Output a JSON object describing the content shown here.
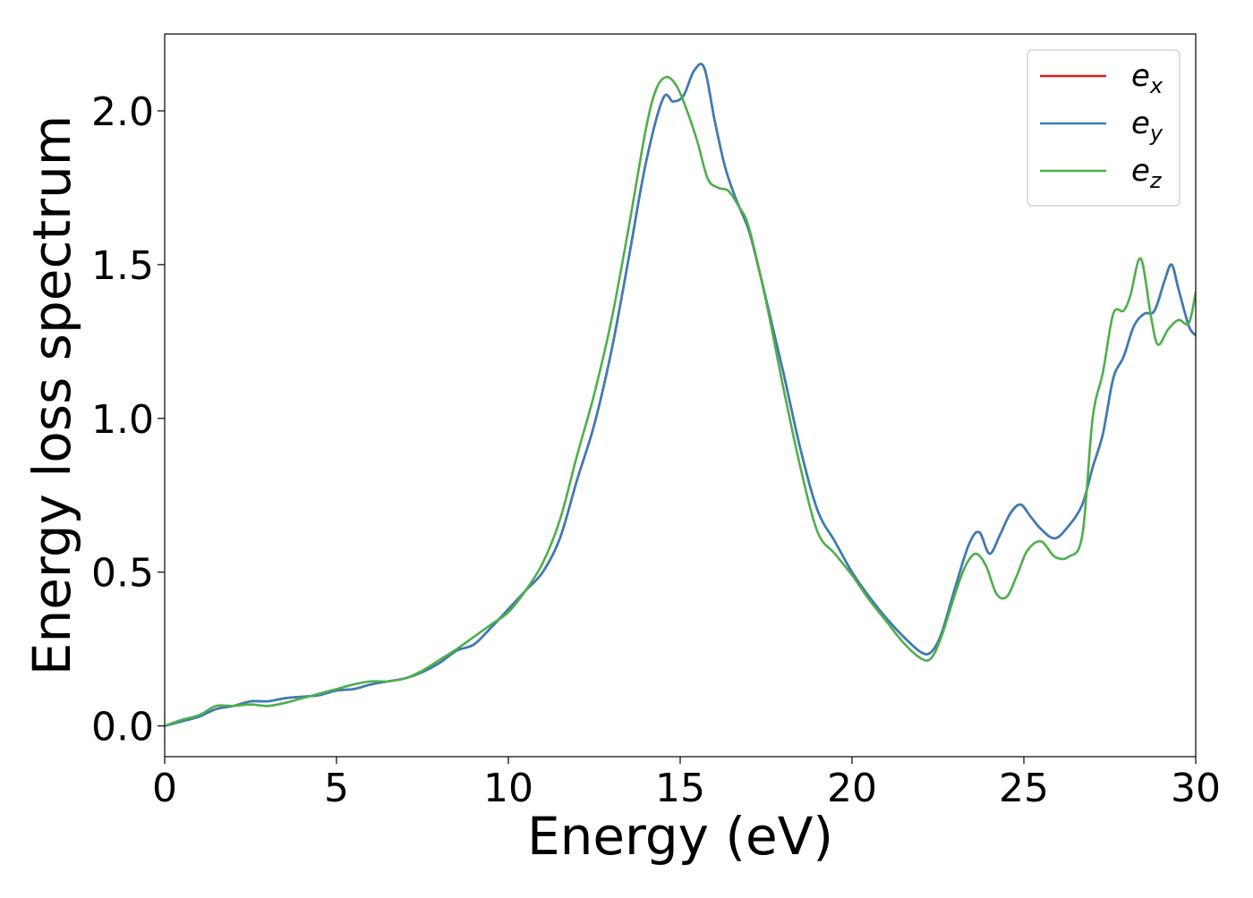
{
  "chart_data": {
    "type": "line",
    "title": "",
    "xlabel": "Energy (eV)",
    "ylabel": "Energy loss spectrum",
    "xlim": [
      0,
      30
    ],
    "ylim": [
      -0.1,
      2.25
    ],
    "xticks": [
      0,
      5,
      10,
      15,
      20,
      25,
      30
    ],
    "xtick_labels": [
      "0",
      "5",
      "10",
      "15",
      "20",
      "25",
      "30"
    ],
    "yticks": [
      0.0,
      0.5,
      1.0,
      1.5,
      2.0
    ],
    "ytick_labels": [
      "0.0",
      "0.5",
      "1.0",
      "1.5",
      "2.0"
    ],
    "grid": false,
    "legend": {
      "placement": "top-right",
      "entries": [
        {
          "base": "e",
          "sub": "x",
          "color": "#e41a1c"
        },
        {
          "base": "e",
          "sub": "y",
          "color": "#377eb8"
        },
        {
          "base": "e",
          "sub": "z",
          "color": "#4daf4a"
        }
      ]
    },
    "series": [
      {
        "name": "ex",
        "color": "#e41a1c",
        "x": [
          0,
          0.5,
          1,
          1.5,
          2,
          2.5,
          3,
          3.5,
          4,
          4.5,
          5,
          5.5,
          6,
          6.5,
          7,
          7.5,
          8,
          8.5,
          9,
          9.5,
          10,
          10.5,
          11,
          11.5,
          12,
          12.5,
          13,
          13.5,
          14,
          14.5,
          14.8,
          15.1,
          15.4,
          15.7,
          16,
          16.3,
          16.6,
          17,
          17.3,
          17.6,
          18,
          18.5,
          19,
          19.5,
          20,
          20.5,
          21,
          21.5,
          22,
          22.3,
          22.6,
          23,
          23.4,
          23.7,
          24,
          24.3,
          24.6,
          24.9,
          25.2,
          25.5,
          25.9,
          26.3,
          26.7,
          27,
          27.3,
          27.6,
          27.9,
          28.2,
          28.5,
          28.8,
          29.1,
          29.3,
          29.5,
          29.8,
          30
        ],
        "y": [
          0.0,
          0.015,
          0.03,
          0.055,
          0.065,
          0.08,
          0.08,
          0.09,
          0.095,
          0.1,
          0.115,
          0.12,
          0.135,
          0.145,
          0.155,
          0.175,
          0.205,
          0.245,
          0.265,
          0.32,
          0.38,
          0.44,
          0.5,
          0.61,
          0.8,
          0.98,
          1.22,
          1.52,
          1.83,
          2.04,
          2.03,
          2.05,
          2.13,
          2.14,
          1.97,
          1.82,
          1.72,
          1.61,
          1.48,
          1.34,
          1.15,
          0.9,
          0.7,
          0.6,
          0.5,
          0.42,
          0.35,
          0.29,
          0.24,
          0.24,
          0.3,
          0.45,
          0.59,
          0.63,
          0.56,
          0.62,
          0.69,
          0.72,
          0.68,
          0.64,
          0.61,
          0.65,
          0.72,
          0.84,
          0.95,
          1.13,
          1.2,
          1.3,
          1.34,
          1.35,
          1.45,
          1.5,
          1.42,
          1.3,
          1.27
        ]
      },
      {
        "name": "ey",
        "color": "#377eb8",
        "x": [
          0,
          0.5,
          1,
          1.5,
          2,
          2.5,
          3,
          3.5,
          4,
          4.5,
          5,
          5.5,
          6,
          6.5,
          7,
          7.5,
          8,
          8.5,
          9,
          9.5,
          10,
          10.5,
          11,
          11.5,
          12,
          12.5,
          13,
          13.5,
          14,
          14.5,
          14.8,
          15.1,
          15.4,
          15.7,
          16,
          16.3,
          16.6,
          17,
          17.3,
          17.6,
          18,
          18.5,
          19,
          19.5,
          20,
          20.5,
          21,
          21.5,
          22,
          22.3,
          22.6,
          23,
          23.4,
          23.7,
          24,
          24.3,
          24.6,
          24.9,
          25.2,
          25.5,
          25.9,
          26.3,
          26.7,
          27,
          27.3,
          27.6,
          27.9,
          28.2,
          28.5,
          28.8,
          29.1,
          29.3,
          29.5,
          29.8,
          30
        ],
        "y": [
          0.0,
          0.015,
          0.03,
          0.055,
          0.065,
          0.08,
          0.08,
          0.09,
          0.095,
          0.1,
          0.115,
          0.12,
          0.135,
          0.145,
          0.155,
          0.175,
          0.205,
          0.245,
          0.265,
          0.32,
          0.38,
          0.44,
          0.5,
          0.61,
          0.8,
          0.98,
          1.22,
          1.52,
          1.83,
          2.04,
          2.03,
          2.05,
          2.13,
          2.14,
          1.97,
          1.82,
          1.72,
          1.61,
          1.48,
          1.34,
          1.15,
          0.9,
          0.7,
          0.6,
          0.5,
          0.42,
          0.35,
          0.29,
          0.24,
          0.24,
          0.3,
          0.45,
          0.59,
          0.63,
          0.56,
          0.62,
          0.69,
          0.72,
          0.68,
          0.64,
          0.61,
          0.65,
          0.72,
          0.84,
          0.95,
          1.13,
          1.2,
          1.3,
          1.34,
          1.35,
          1.45,
          1.5,
          1.42,
          1.3,
          1.27
        ]
      },
      {
        "name": "ez",
        "color": "#4daf4a",
        "x": [
          0,
          0.5,
          1,
          1.5,
          2,
          2.5,
          3,
          3.5,
          4,
          4.5,
          5,
          5.5,
          6,
          6.5,
          7,
          7.5,
          8,
          8.5,
          9,
          9.5,
          10,
          10.5,
          11,
          11.5,
          12,
          12.5,
          13,
          13.5,
          14,
          14.3,
          14.6,
          14.9,
          15.2,
          15.5,
          15.8,
          16.1,
          16.4,
          16.7,
          17,
          17.5,
          18,
          18.5,
          19,
          19.5,
          20,
          20.5,
          21,
          21.5,
          22,
          22.3,
          22.6,
          23,
          23.3,
          23.6,
          23.9,
          24.2,
          24.5,
          24.8,
          25.1,
          25.5,
          25.9,
          26.3,
          26.7,
          27,
          27.3,
          27.6,
          27.9,
          28.1,
          28.4,
          28.7,
          28.9,
          29.2,
          29.5,
          29.8,
          30
        ],
        "y": [
          0.0,
          0.02,
          0.035,
          0.065,
          0.065,
          0.07,
          0.065,
          0.075,
          0.09,
          0.105,
          0.12,
          0.135,
          0.145,
          0.145,
          0.155,
          0.18,
          0.215,
          0.25,
          0.29,
          0.33,
          0.37,
          0.44,
          0.53,
          0.67,
          0.88,
          1.08,
          1.32,
          1.62,
          1.94,
          2.07,
          2.11,
          2.08,
          2.0,
          1.9,
          1.78,
          1.75,
          1.74,
          1.69,
          1.62,
          1.38,
          1.1,
          0.84,
          0.63,
          0.56,
          0.49,
          0.41,
          0.34,
          0.27,
          0.22,
          0.22,
          0.29,
          0.43,
          0.52,
          0.56,
          0.52,
          0.43,
          0.42,
          0.49,
          0.57,
          0.6,
          0.55,
          0.55,
          0.62,
          1.0,
          1.15,
          1.34,
          1.35,
          1.4,
          1.52,
          1.33,
          1.24,
          1.29,
          1.32,
          1.31,
          1.41
        ]
      }
    ]
  }
}
